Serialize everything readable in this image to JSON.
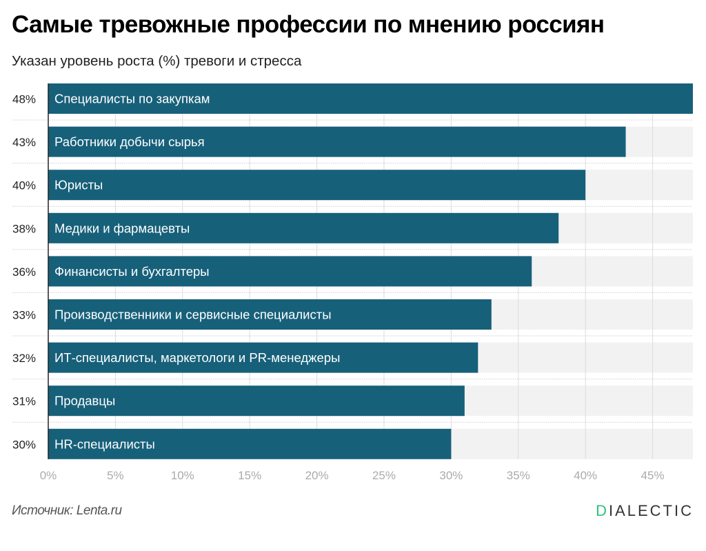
{
  "title": "Самые тревожные профессии по мнению россиян",
  "subtitle": "Указан уровень роста (%) тревоги и стресса",
  "source": "Источник: Lenta.ru",
  "logo": "DIALECTIC",
  "colors": {
    "bar": "#17607a",
    "track": "#f2f2f2",
    "grid": "#dcdcdc",
    "tick": "#aaaaaa",
    "logo_accent": "#2fc27a"
  },
  "chart_data": {
    "type": "bar",
    "orientation": "horizontal",
    "categories": [
      "Специалисты по закупкам",
      "Работники добычи сырья",
      "Юристы",
      "Медики и фармацевты",
      "Финансисты и бухгалтеры",
      "Производственники и сервисные специалисты",
      "ИТ-специалисты, маркетологи и PR-менеджеры",
      "Продавцы",
      "HR-специалисты"
    ],
    "values": [
      48,
      43,
      40,
      38,
      36,
      33,
      32,
      31,
      30
    ],
    "value_labels": [
      "48%",
      "43%",
      "40%",
      "38%",
      "36%",
      "33%",
      "32%",
      "31%",
      "30%"
    ],
    "xlim": [
      0,
      48
    ],
    "xticks": [
      "0%",
      "5%",
      "10%",
      "15%",
      "20%",
      "25%",
      "30%",
      "35%",
      "40%",
      "45%"
    ],
    "xtick_values": [
      0,
      5,
      10,
      15,
      20,
      25,
      30,
      35,
      40,
      45
    ],
    "grid": true
  }
}
